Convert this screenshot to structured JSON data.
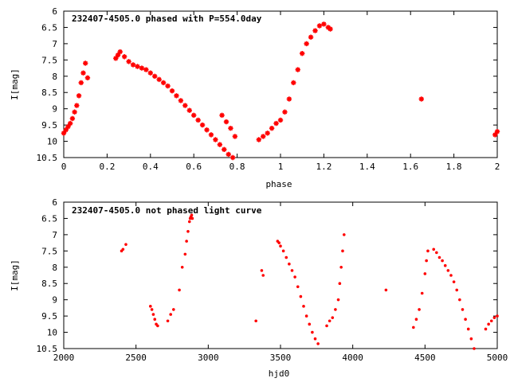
{
  "chart_data": [
    {
      "type": "scatter",
      "title": "232407-4505.0 phased with P=554.0day",
      "xlabel": "phase",
      "ylabel": "I[mag]",
      "xlim": [
        0,
        2
      ],
      "ylim": [
        6,
        10.5
      ],
      "y_inverted": true,
      "xticks": [
        "0",
        "0.2",
        "0.4",
        "0.6",
        "0.8",
        "1",
        "1.2",
        "1.4",
        "1.6",
        "1.8",
        "2"
      ],
      "yticks": [
        "6",
        "6.5",
        "7",
        "7.5",
        "8",
        "8.5",
        "9",
        "9.5",
        "10",
        "10.5"
      ],
      "marker": "star",
      "color": "#ff0000",
      "grid": false,
      "series": [
        {
          "x": [
            0.0,
            0.01,
            0.02,
            0.03,
            0.04,
            0.05,
            0.06,
            0.07,
            0.08,
            0.09,
            0.1,
            0.11,
            0.24,
            0.25,
            0.26,
            0.28,
            0.3,
            0.32,
            0.34,
            0.36,
            0.38,
            0.4,
            0.42,
            0.44,
            0.46,
            0.48,
            0.5,
            0.52,
            0.54,
            0.56,
            0.58,
            0.6,
            0.62,
            0.64,
            0.66,
            0.68,
            0.7,
            0.72,
            0.74,
            0.76,
            0.78,
            0.73,
            0.75,
            0.77,
            0.79,
            0.9,
            0.92,
            0.94,
            0.96,
            0.98,
            1.0,
            1.02,
            1.04,
            1.06,
            1.08,
            1.1,
            1.12,
            1.14,
            1.16,
            1.18,
            1.2,
            1.22,
            1.23,
            1.65,
            1.99,
            2.0
          ],
          "y": [
            9.75,
            9.65,
            9.55,
            9.45,
            9.3,
            9.1,
            8.9,
            8.6,
            8.2,
            7.9,
            7.6,
            8.05,
            7.45,
            7.35,
            7.25,
            7.4,
            7.55,
            7.65,
            7.7,
            7.75,
            7.8,
            7.9,
            8.0,
            8.1,
            8.2,
            8.3,
            8.45,
            8.6,
            8.75,
            8.9,
            9.05,
            9.2,
            9.35,
            9.5,
            9.65,
            9.8,
            9.95,
            10.1,
            10.25,
            10.4,
            10.5,
            9.2,
            9.4,
            9.6,
            9.85,
            9.95,
            9.85,
            9.75,
            9.6,
            9.45,
            9.35,
            9.1,
            8.7,
            8.2,
            7.8,
            7.3,
            7.0,
            6.8,
            6.6,
            6.45,
            6.4,
            6.5,
            6.55,
            8.7,
            9.8,
            9.7
          ]
        }
      ]
    },
    {
      "type": "scatter",
      "title": "232407-4505.0 not phased light curve",
      "xlabel": "hjd0",
      "ylabel": "I[mag]",
      "xlim": [
        2000,
        5000
      ],
      "ylim": [
        6,
        10.5
      ],
      "y_inverted": true,
      "xticks": [
        "2000",
        "2500",
        "3000",
        "3500",
        "4000",
        "4500",
        "5000"
      ],
      "yticks": [
        "6",
        "6.5",
        "7",
        "7.5",
        "8",
        "8.5",
        "9",
        "9.5",
        "10",
        "10.5"
      ],
      "marker": "dot",
      "color": "#ff0000",
      "grid": false,
      "series": [
        {
          "x": [
            2400,
            2410,
            2430,
            2600,
            2610,
            2620,
            2630,
            2640,
            2650,
            2720,
            2740,
            2760,
            2800,
            2820,
            2840,
            2850,
            2860,
            2870,
            2875,
            2880,
            2885,
            2890,
            3330,
            3370,
            3380,
            3480,
            3490,
            3500,
            3520,
            3540,
            3560,
            3580,
            3600,
            3620,
            3640,
            3660,
            3680,
            3700,
            3720,
            3740,
            3760,
            3820,
            3840,
            3860,
            3880,
            3900,
            3910,
            3920,
            3930,
            3940,
            4230,
            4420,
            4440,
            4460,
            4480,
            4500,
            4510,
            4520,
            4560,
            4580,
            4600,
            4620,
            4640,
            4660,
            4680,
            4700,
            4720,
            4740,
            4760,
            4780,
            4800,
            4820,
            4840,
            4920,
            4940,
            4960,
            4980,
            5000
          ],
          "y": [
            7.5,
            7.45,
            7.3,
            9.2,
            9.3,
            9.45,
            9.6,
            9.75,
            9.8,
            9.65,
            9.45,
            9.3,
            8.7,
            8.0,
            7.6,
            7.2,
            6.9,
            6.6,
            6.5,
            6.45,
            6.4,
            6.5,
            9.65,
            8.1,
            8.25,
            7.2,
            7.25,
            7.35,
            7.5,
            7.7,
            7.9,
            8.1,
            8.3,
            8.6,
            8.9,
            9.2,
            9.5,
            9.75,
            10.0,
            10.2,
            10.35,
            9.8,
            9.65,
            9.55,
            9.3,
            9.0,
            8.5,
            8.0,
            7.5,
            7.0,
            8.7,
            9.85,
            9.6,
            9.3,
            8.8,
            8.2,
            7.8,
            7.5,
            7.45,
            7.55,
            7.7,
            7.8,
            7.95,
            8.1,
            8.25,
            8.45,
            8.7,
            9.0,
            9.3,
            9.6,
            9.9,
            10.2,
            10.5,
            9.9,
            9.75,
            9.65,
            9.55,
            9.5
          ]
        }
      ]
    }
  ]
}
